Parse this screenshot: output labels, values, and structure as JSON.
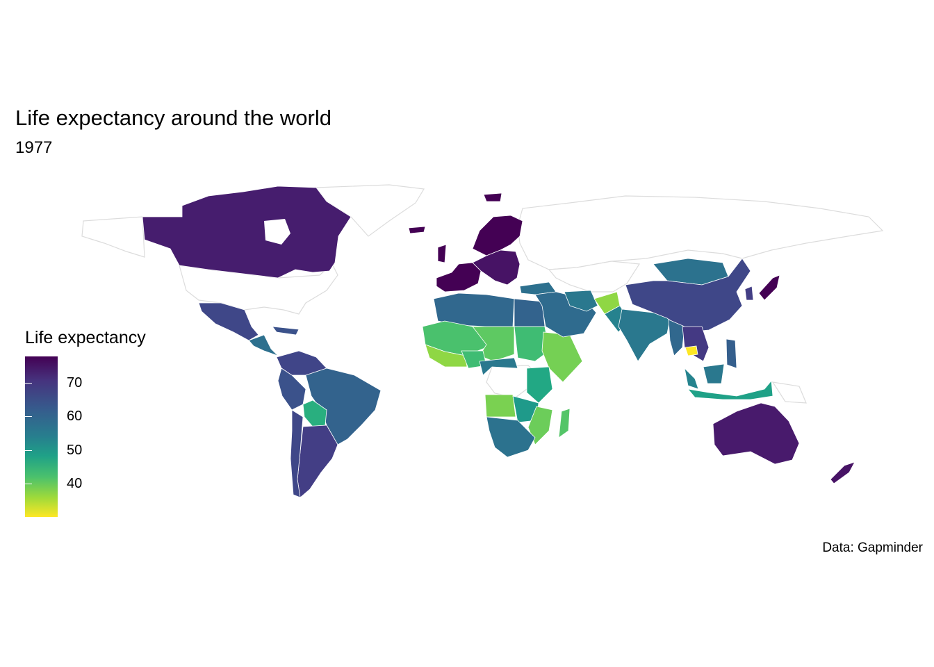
{
  "title": "Life expectancy around the world",
  "subtitle": "1977",
  "caption": "Data: Gapminder",
  "legend": {
    "title": "Life expectancy",
    "ticks": [
      "70",
      "60",
      "50",
      "40"
    ],
    "scale": "viridis",
    "colors": [
      "#440154",
      "#46337e",
      "#365c8d",
      "#277f8e",
      "#1fa187",
      "#4ac16d",
      "#9fda3a",
      "#fde725"
    ]
  }
}
